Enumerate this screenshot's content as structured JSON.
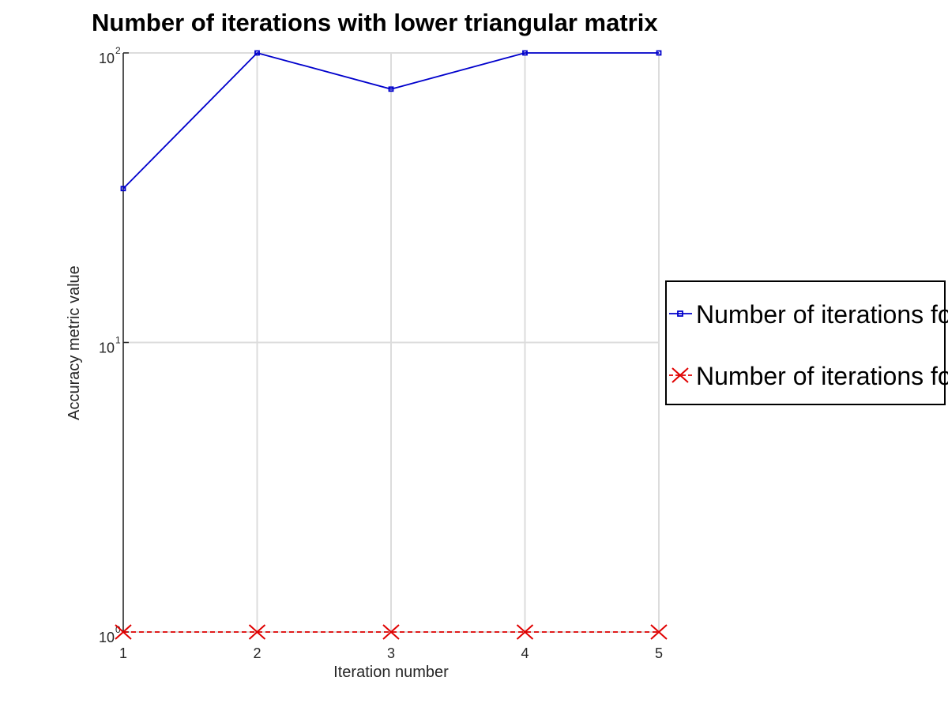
{
  "chart_data": {
    "type": "line",
    "title": "Number of iterations with lower triangular matrix",
    "xlabel": "Iteration number",
    "ylabel": "Accuracy metric value",
    "x": [
      1,
      2,
      3,
      4,
      5
    ],
    "xlim": [
      1,
      5
    ],
    "ylim": [
      1,
      100
    ],
    "yscale": "log",
    "xticks": [
      "1",
      "2",
      "3",
      "4",
      "5"
    ],
    "yticks": [
      {
        "base": "10",
        "exp": "0",
        "value": 1
      },
      {
        "base": "10",
        "exp": "1",
        "value": 10
      },
      {
        "base": "10",
        "exp": "2",
        "value": 100
      }
    ],
    "grid": true,
    "legend_position": "right",
    "series": [
      {
        "name": "Number of iterations fo",
        "values": [
          34,
          100,
          75,
          100,
          100
        ],
        "color": "#0000cc",
        "marker": "square",
        "line": "solid"
      },
      {
        "name": "Number of iterations fo",
        "values": [
          1,
          1,
          1,
          1,
          1
        ],
        "color": "#e00000",
        "marker": "x",
        "line": "dashed"
      }
    ]
  }
}
